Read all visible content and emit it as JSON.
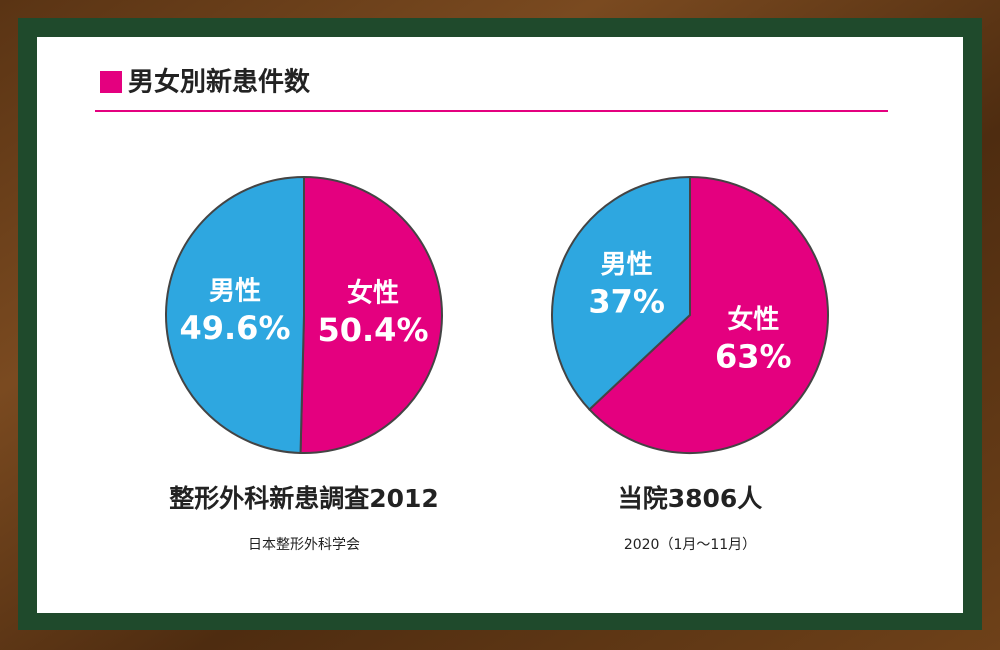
{
  "title": "男女別新患件数",
  "chart_data": [
    {
      "type": "pie",
      "title": "整形外科新患調査2012",
      "subtitle": "日本整形外科学会",
      "categories": [
        "男性",
        "女性"
      ],
      "values": [
        49.6,
        50.4
      ],
      "value_labels": [
        "49.6%",
        "50.4%"
      ],
      "colors": [
        "#2ea7e0",
        "#e4007f"
      ]
    },
    {
      "type": "pie",
      "title": "当院3806人",
      "subtitle": "2020（1月〜11月）",
      "categories": [
        "男性",
        "女性"
      ],
      "values": [
        37,
        63
      ],
      "value_labels": [
        "37%",
        "63%"
      ],
      "colors": [
        "#2ea7e0",
        "#e4007f"
      ]
    }
  ]
}
